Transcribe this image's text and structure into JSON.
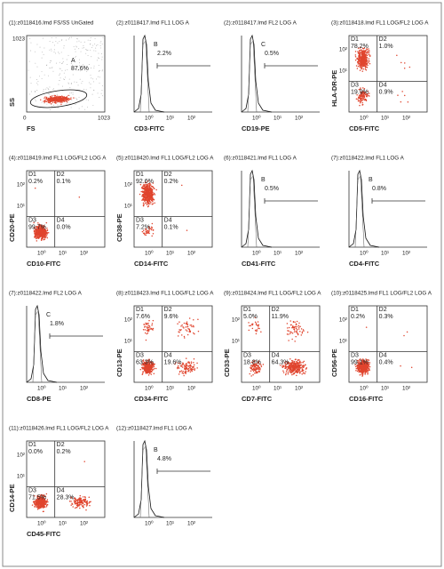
{
  "panels": [
    {
      "title": "(1):z0118416.lmd FS/SS UnGated",
      "x_label": "FS",
      "y_label": "SS",
      "x_ticks": [
        "0",
        "1023"
      ],
      "y_ticks": [
        "1023"
      ],
      "gate": {
        "label": "A",
        "percent": "87.6%"
      }
    },
    {
      "title": "(2):z0118417.lmd FL1 LOG A",
      "x_label": "CD3-FITC",
      "x_ticks": [
        "10⁰",
        "10¹",
        "10²"
      ],
      "marker": {
        "label": "B",
        "percent": "2.2%"
      }
    },
    {
      "title": "(2):z0118417.lmd FL2 LOG A",
      "x_label": "CD19-PE",
      "x_ticks": [
        "10⁰",
        "10¹",
        "10²"
      ],
      "marker": {
        "label": "C",
        "percent": "0.5%"
      }
    },
    {
      "title": "(3):z0118418.lmd FL1 LOG/FL2 LOG A",
      "x_label": "CD5-FITC",
      "y_label": "HLA-DR-PE",
      "x_ticks": [
        "10⁰",
        "10¹",
        "10²"
      ],
      "y_ticks": [
        "10²",
        "10¹"
      ],
      "quadrants": [
        {
          "label": "D1",
          "percent": "78.2%"
        },
        {
          "label": "D2",
          "percent": "1.0%"
        },
        {
          "label": "D3",
          "percent": "19.9%"
        },
        {
          "label": "D4",
          "percent": "0.9%"
        }
      ]
    },
    {
      "title": "(4):z0118419.lmd FL1 LOG/FL2 LOG A",
      "x_label": "CD10-FITC",
      "y_label": "CD20-PE",
      "x_ticks": [
        "10⁰",
        "10¹",
        "10²"
      ],
      "y_ticks": [
        "10²",
        "10¹"
      ],
      "quadrants": [
        {
          "label": "D1",
          "percent": "0.2%"
        },
        {
          "label": "D2",
          "percent": "0.1%"
        },
        {
          "label": "D3",
          "percent": "99.7%"
        },
        {
          "label": "D4",
          "percent": "0.0%"
        }
      ]
    },
    {
      "title": "(5):z0118420.lmd FL1 LOG/FL2 LOG A",
      "x_label": "CD14-FITC",
      "y_label": "CD38-PE",
      "x_ticks": [
        "10⁰",
        "10¹",
        "10²"
      ],
      "y_ticks": [
        "10²",
        "10¹"
      ],
      "quadrants": [
        {
          "label": "D1",
          "percent": "92.6%"
        },
        {
          "label": "D2",
          "percent": "0.2%"
        },
        {
          "label": "D3",
          "percent": "7.2%"
        },
        {
          "label": "D4",
          "percent": "0.1%"
        }
      ]
    },
    {
      "title": "(6):z0118421.lmd FL1 LOG A",
      "x_label": "CD41-FITC",
      "x_ticks": [
        "10⁰",
        "10¹",
        "10²"
      ],
      "marker": {
        "label": "B",
        "percent": "0.5%"
      }
    },
    {
      "title": "(7):z0118422.lmd FL1 LOG A",
      "x_label": "CD4-FITC",
      "x_ticks": [
        "10⁰",
        "10¹",
        "10²"
      ],
      "marker": {
        "label": "B",
        "percent": "0.8%"
      }
    },
    {
      "title": "(7):z0118422.lmd FL2 LOG A",
      "x_label": "CD8-PE",
      "x_ticks": [
        "10⁰",
        "10¹",
        "10²"
      ],
      "marker": {
        "label": "C",
        "percent": "1.8%"
      }
    },
    {
      "title": "(8):z0118423.lmd FL1 LOG/FL2 LOG A",
      "x_label": "CD34-FITC",
      "y_label": "CD13-PE",
      "x_ticks": [
        "10⁰",
        "10¹",
        "10²"
      ],
      "y_ticks": [
        "10²",
        "10¹"
      ],
      "quadrants": [
        {
          "label": "D1",
          "percent": "7.6%"
        },
        {
          "label": "D2",
          "percent": "9.6%"
        },
        {
          "label": "D3",
          "percent": "63.3%"
        },
        {
          "label": "D4",
          "percent": "19.6%"
        }
      ]
    },
    {
      "title": "(9):z0118424.lmd FL1 LOG/FL2 LOG A",
      "x_label": "CD7-FITC",
      "y_label": "CD33-PE",
      "x_ticks": [
        "10⁰",
        "10¹",
        "10²"
      ],
      "y_ticks": [
        "10²",
        "10¹"
      ],
      "quadrants": [
        {
          "label": "D1",
          "percent": "5.0%"
        },
        {
          "label": "D2",
          "percent": "11.9%"
        },
        {
          "label": "D3",
          "percent": "18.8%"
        },
        {
          "label": "D4",
          "percent": "64.3%"
        }
      ]
    },
    {
      "title": "(10):z0118425.lmd FL1 LOG/FL2 LOG A",
      "x_label": "CD16-FITC",
      "y_label": "CD56-PE",
      "x_ticks": [
        "10⁰",
        "10¹",
        "10²"
      ],
      "y_ticks": [
        "10²",
        "10¹"
      ],
      "quadrants": [
        {
          "label": "D1",
          "percent": "0.2%"
        },
        {
          "label": "D2",
          "percent": "0.3%"
        },
        {
          "label": "D3",
          "percent": "99.1%"
        },
        {
          "label": "D4",
          "percent": "0.4%"
        }
      ]
    },
    {
      "title": "(11):z0118426.lmd FL1 LOG/FL2 LOG A",
      "x_label": "CD45-FITC",
      "y_label": "CD14-PE",
      "x_ticks": [
        "10⁰",
        "10¹",
        "10²"
      ],
      "y_ticks": [
        "10²",
        "10¹"
      ],
      "quadrants": [
        {
          "label": "D1",
          "percent": "0.0%"
        },
        {
          "label": "D2",
          "percent": "0.2%"
        },
        {
          "label": "D3",
          "percent": "71.5%"
        },
        {
          "label": "D4",
          "percent": "28.3%"
        }
      ]
    },
    {
      "title": "(12):z0118427.lmd FL1 LOG A",
      "x_ticks": [
        "10⁰",
        "10¹",
        "10²"
      ],
      "marker": {
        "label": "B",
        "percent": "4.8%"
      }
    }
  ]
}
